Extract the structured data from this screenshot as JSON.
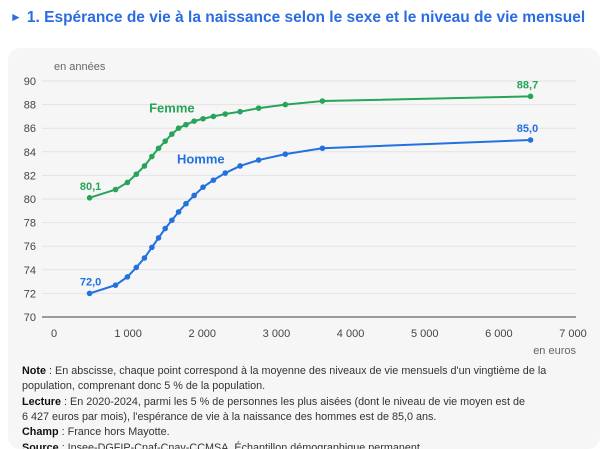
{
  "header": {
    "bullet": "►",
    "title": "1. Espérance de vie à la naissance selon le sexe et le niveau de vie mensuel"
  },
  "colors": {
    "title_blue": "#2b6ce1",
    "card_background": "#f6f6f6",
    "grid_line": "#e3e3e3",
    "axis_line": "#9a9a9a",
    "tick_label": "#444444",
    "unit_label": "#666666",
    "femme_green": "#27a35a",
    "homme_blue": "#2271de"
  },
  "chart_data": {
    "type": "line",
    "y_unit_label": "en années",
    "x_unit_label": "en euros",
    "xlim": [
      0,
      7000
    ],
    "ylim": [
      70,
      90
    ],
    "grid": true,
    "y_ticks": [
      70,
      72,
      74,
      76,
      78,
      80,
      82,
      84,
      86,
      88,
      90
    ],
    "x_ticks": [
      {
        "value": 0,
        "label": "0"
      },
      {
        "value": 1000,
        "label": "1 000"
      },
      {
        "value": 2000,
        "label": "2 000"
      },
      {
        "value": 3000,
        "label": "3 000"
      },
      {
        "value": 4000,
        "label": "4 000"
      },
      {
        "value": 5000,
        "label": "5 000"
      },
      {
        "value": 6000,
        "label": "6 000"
      },
      {
        "value": 7000,
        "label": "7 000"
      }
    ],
    "series": [
      {
        "name": "Femme",
        "color": "#27a35a",
        "x": [
          480,
          830,
          990,
          1110,
          1220,
          1320,
          1410,
          1500,
          1590,
          1680,
          1780,
          1890,
          2010,
          2150,
          2310,
          2510,
          2760,
          3120,
          3620,
          6427
        ],
        "y": [
          80.1,
          80.8,
          81.4,
          82.1,
          82.8,
          83.6,
          84.3,
          84.9,
          85.5,
          86.0,
          86.3,
          86.6,
          86.8,
          87.0,
          87.2,
          87.4,
          87.7,
          88.0,
          88.3,
          88.7
        ],
        "first_point_label": "80,1",
        "last_point_label": "88,7",
        "name_label_pos": {
          "x": 1590,
          "y": 87.35
        }
      },
      {
        "name": "Homme",
        "color": "#2271de",
        "x": [
          480,
          830,
          990,
          1110,
          1220,
          1320,
          1410,
          1500,
          1590,
          1680,
          1780,
          1890,
          2010,
          2150,
          2310,
          2510,
          2760,
          3120,
          3620,
          6427
        ],
        "y": [
          72.0,
          72.7,
          73.4,
          74.2,
          75.0,
          75.9,
          76.7,
          77.5,
          78.2,
          78.9,
          79.6,
          80.3,
          81.0,
          81.6,
          82.2,
          82.8,
          83.3,
          83.8,
          84.3,
          85.0
        ],
        "first_point_label": "72,0",
        "last_point_label": "85,0",
        "name_label_pos": {
          "x": 1980,
          "y": 83.0
        }
      }
    ]
  },
  "notes": {
    "separator": " : ",
    "items": [
      {
        "label": "Note",
        "lines": [
          "En abscisse, chaque point correspond à la moyenne des niveaux de vie mensuels d'un vingtième de la",
          "population, comprenant donc 5 % de la population."
        ]
      },
      {
        "label": "Lecture",
        "lines": [
          "En 2020-2024, parmi les 5 % de personnes les plus aisées (dont le niveau de vie moyen est de",
          "6 427 euros par mois), l'espérance de vie à la naissance des hommes est de 85,0 ans."
        ]
      },
      {
        "label": "Champ",
        "lines": [
          "France hors Mayotte."
        ]
      },
      {
        "label": "Source",
        "lines": [
          "Insee-DGFIP-Cnaf-Cnav-CCMSA, Échantillon démographique permanent."
        ]
      }
    ]
  }
}
